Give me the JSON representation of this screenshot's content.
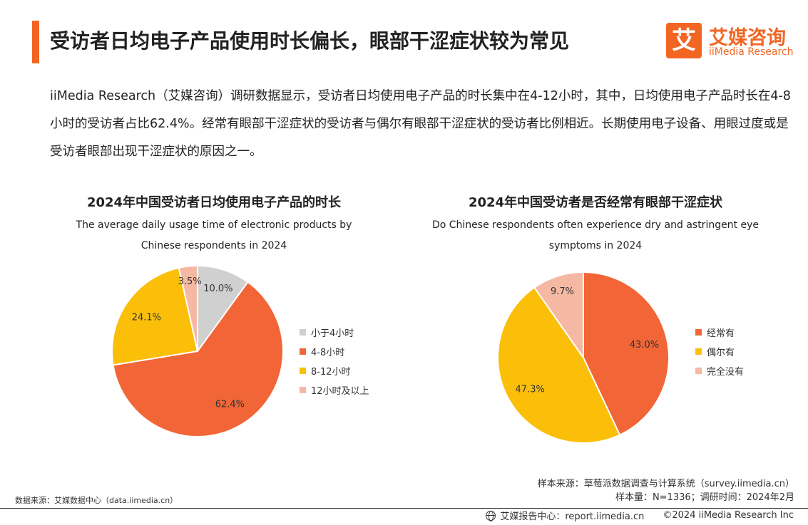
{
  "header": {
    "title": "受访者日均电子产品使用时长偏长，眼部干涩症状较为常见",
    "accent_color": "#f26522"
  },
  "logo": {
    "mark_char": "艾",
    "name_cn": "艾媒咨询",
    "name_en": "iiMedia Research"
  },
  "intro": {
    "text": "iiMedia Research（艾媒咨询）调研数据显示，受访者日均使用电子产品的时长集中在4-12小时，其中，日均使用电子产品时长在4-8小时的受访者占比62.4%。经常有眼部干涩症状的受访者与偶尔有眼部干涩症状的受访者比例相近。长期使用电子设备、用眼过度或是受访者眼部出现干涩症状的原因之一。"
  },
  "chart_data": [
    {
      "type": "pie",
      "title": "2024年中国受访者日均使用电子产品的时长",
      "subtitle_line1": "The average daily usage time of electronic products by",
      "subtitle_line2": "Chinese respondents in 2024",
      "legend_position": "right",
      "slices": [
        {
          "label": "小于4小时",
          "value": 10.0,
          "display": "10.0%",
          "color": "#d0d0d0"
        },
        {
          "label": "4-8小时",
          "value": 62.4,
          "display": "62.4%",
          "color": "#f26536"
        },
        {
          "label": "8-12小时",
          "value": 24.1,
          "display": "24.1%",
          "color": "#fbbf0a"
        },
        {
          "label": "12小时及以上",
          "value": 3.5,
          "display": "3.5%",
          "color": "#f5b8a2"
        }
      ]
    },
    {
      "type": "pie",
      "title": "2024年中国受访者是否经常有眼部干涩症状",
      "subtitle_line1": "Do Chinese respondents often experience dry and astringent eye",
      "subtitle_line2": "symptoms in 2024",
      "legend_position": "right",
      "slices": [
        {
          "label": "经常有",
          "value": 43.0,
          "display": "43.0%",
          "color": "#f26536"
        },
        {
          "label": "偶尔有",
          "value": 47.3,
          "display": "47.3%",
          "color": "#fbbf0a"
        },
        {
          "label": "完全没有",
          "value": 9.7,
          "display": "9.7%",
          "color": "#f5b8a2"
        }
      ]
    }
  ],
  "sources": {
    "sample_source": "样本来源：草莓派数据调查与计算系统（survey.iimedia.cn）",
    "sample_info": "样本量：N=1336；调研时间：2024年2月",
    "data_source": "数据来源：艾媒数据中心（data.iimedia.cn）"
  },
  "footer": {
    "icon": "globe-icon",
    "report_center": "艾媒报告中心：report.iimedia.cn",
    "copyright": "©2024  iiMedia Research  Inc"
  }
}
